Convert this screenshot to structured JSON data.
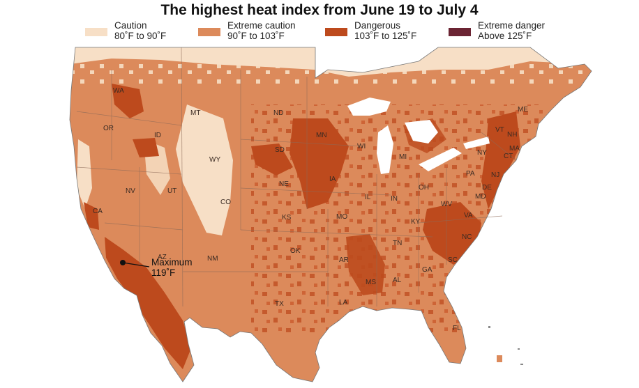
{
  "title": "The highest heat index from June 19 to July 4",
  "legend": [
    {
      "category": "Caution",
      "range": "80˚F to 90˚F",
      "color": "#f7dfc6"
    },
    {
      "category": "Extreme caution",
      "range": "90˚F to 103˚F",
      "color": "#dc8a5b"
    },
    {
      "category": "Dangerous",
      "range": "103˚F to 125˚F",
      "color": "#bd4a1d"
    },
    {
      "category": "Extreme danger",
      "range": "Above 125˚F",
      "color": "#6b2433"
    }
  ],
  "states": [
    "WA",
    "OR",
    "ID",
    "MT",
    "WY",
    "ND",
    "SD",
    "MN",
    "WI",
    "MI",
    "NE",
    "IA",
    "IL",
    "IN",
    "OH",
    "NY",
    "VT",
    "NH",
    "ME",
    "MA",
    "CT",
    "PA",
    "NJ",
    "DE",
    "MD",
    "WV",
    "VA",
    "KY",
    "TN",
    "NC",
    "SC",
    "GA",
    "AL",
    "MS",
    "LA",
    "AR",
    "MO",
    "KS",
    "OK",
    "TX",
    "NM",
    "CO",
    "UT",
    "NV",
    "CA",
    "AZ",
    "FL"
  ],
  "annotation": {
    "label": "Maximum",
    "value": "119˚F"
  }
}
